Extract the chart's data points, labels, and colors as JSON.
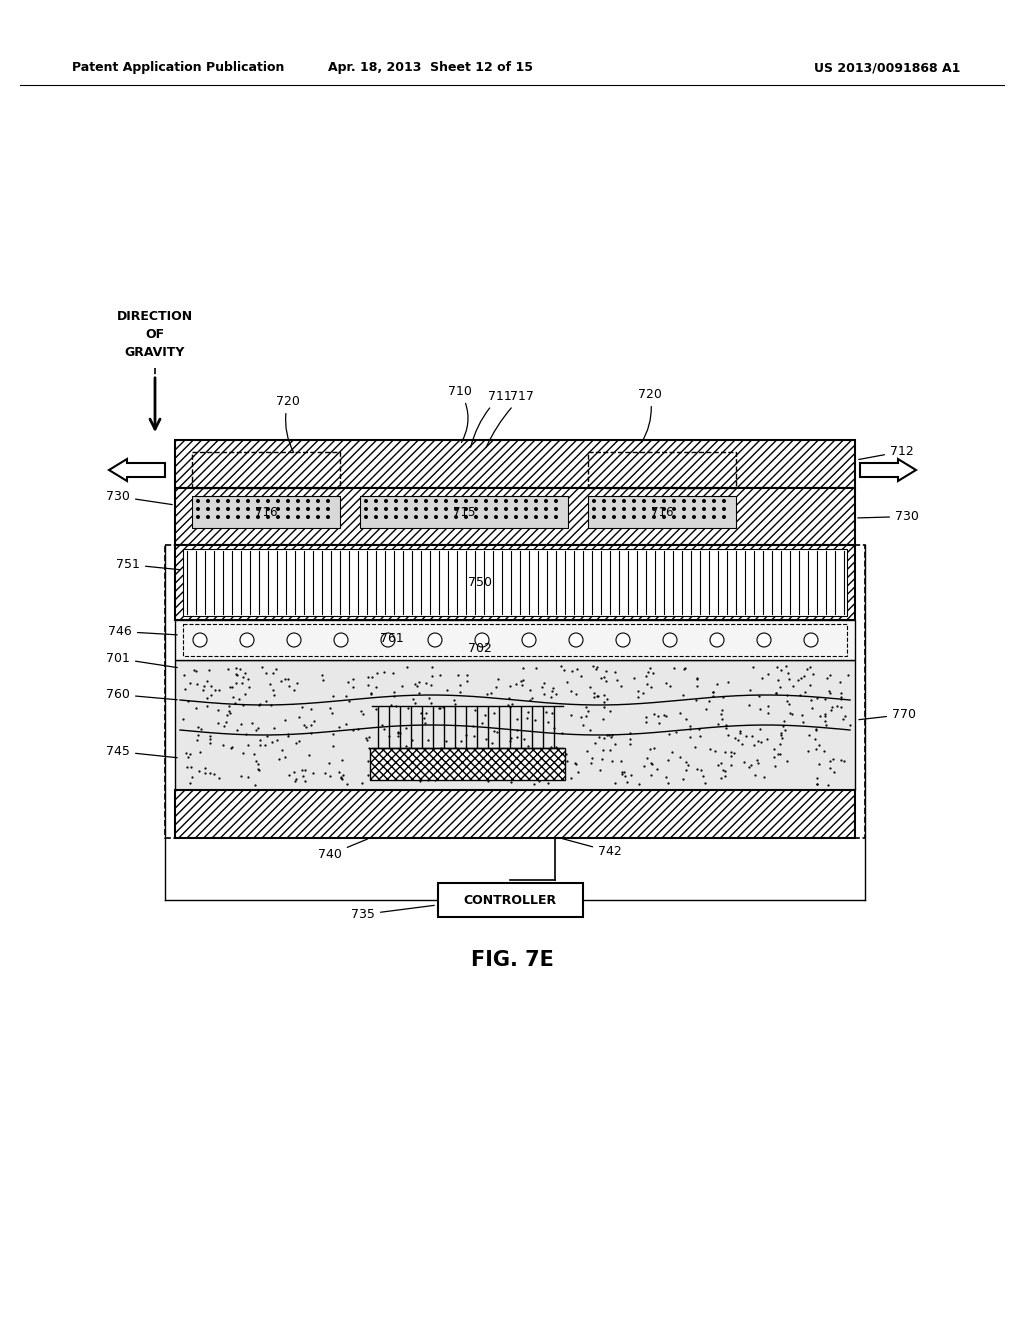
{
  "bg_color": "#ffffff",
  "header_left": "Patent Application Publication",
  "header_mid": "Apr. 18, 2013  Sheet 12 of 15",
  "header_right": "US 2013/0091868 A1",
  "fig_label": "FIG. 7E"
}
